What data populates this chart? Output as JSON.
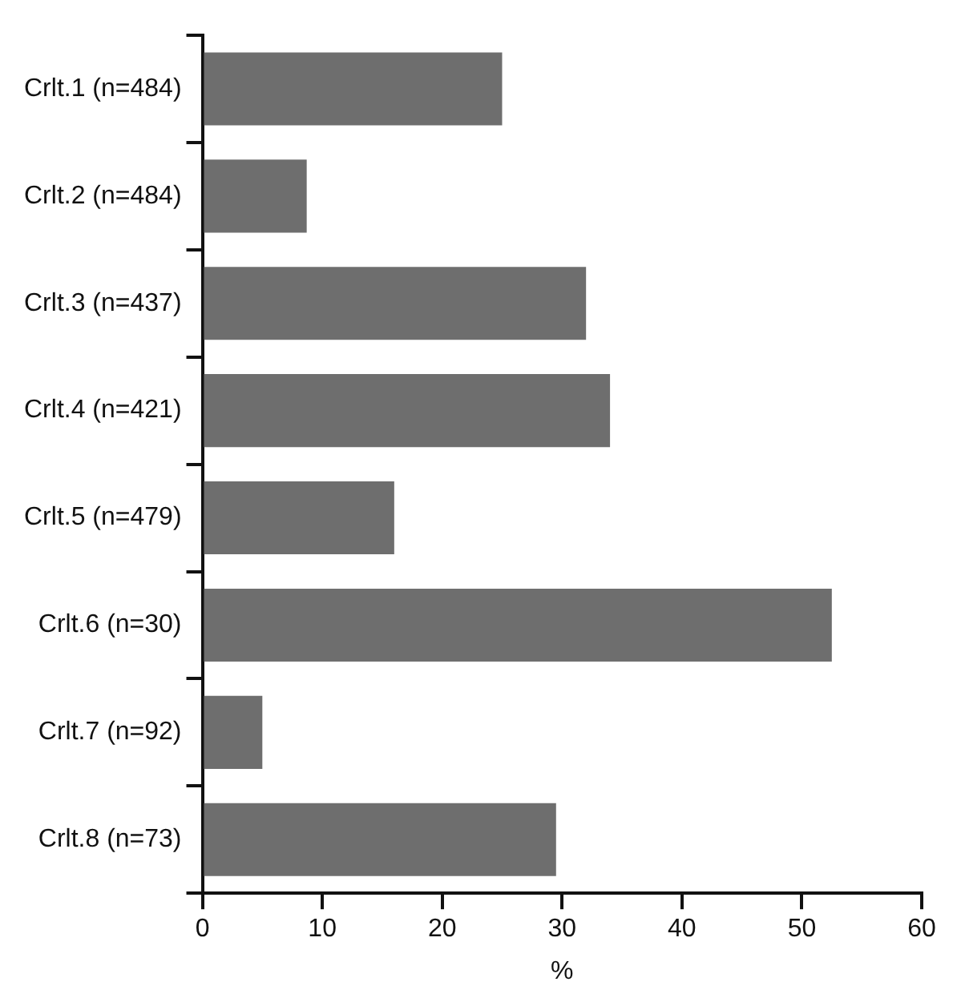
{
  "chart_data": {
    "type": "bar",
    "orientation": "horizontal",
    "categories": [
      "Crlt.1 (n=484)",
      "Crlt.2 (n=484)",
      "Crlt.3 (n=437)",
      "Crlt.4 (n=421)",
      "Crlt.5 (n=479)",
      "Crlt.6 (n=30)",
      "Crlt.7 (n=92)",
      "Crlt.8 (n=73)"
    ],
    "values": [
      25,
      8.7,
      32,
      34,
      16,
      52.5,
      5,
      29.5
    ],
    "color": "#6e6e6e",
    "xlim": [
      0,
      60
    ],
    "xticks": [
      0,
      10,
      20,
      30,
      40,
      50,
      60
    ],
    "xlabel": "%",
    "grid": false,
    "legend": false
  }
}
